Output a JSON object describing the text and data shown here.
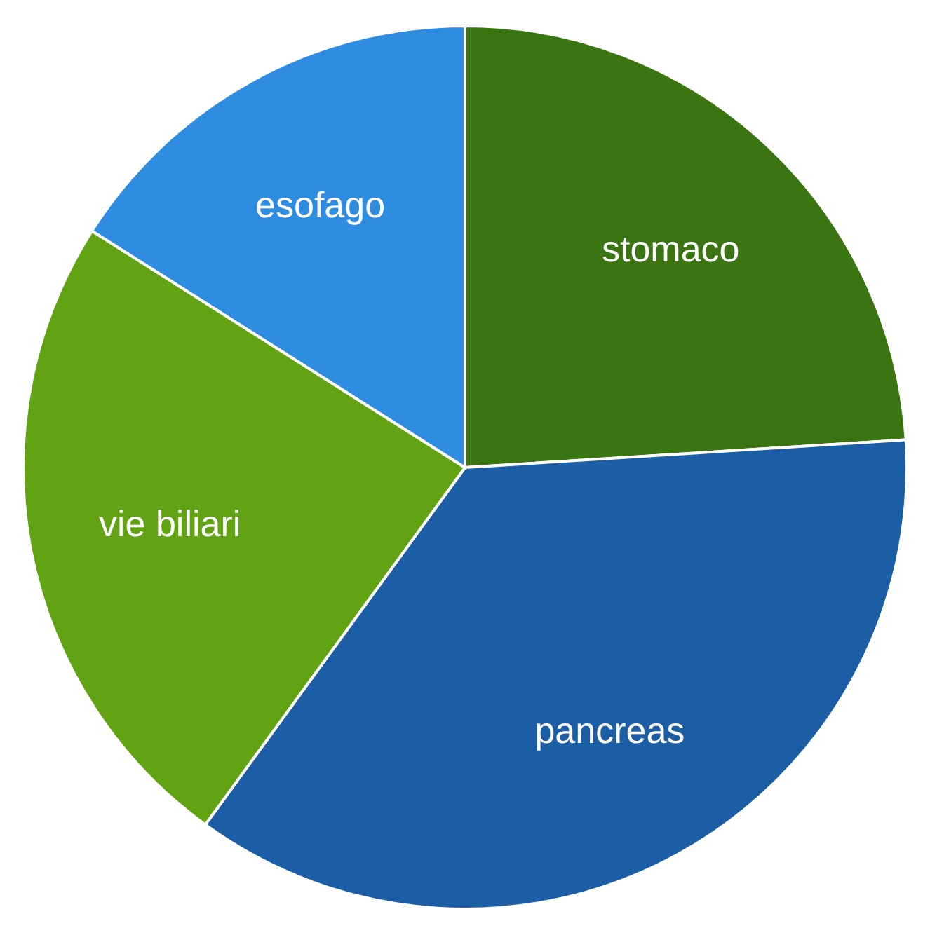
{
  "chart_data": {
    "type": "pie",
    "categories": [
      "stomaco",
      "pancreas",
      "vie biliari",
      "esofago"
    ],
    "values": [
      24,
      36,
      24,
      16
    ],
    "colors": [
      "#3a7512",
      "#1b5ea6",
      "#62a313",
      "#2e8de0"
    ]
  }
}
